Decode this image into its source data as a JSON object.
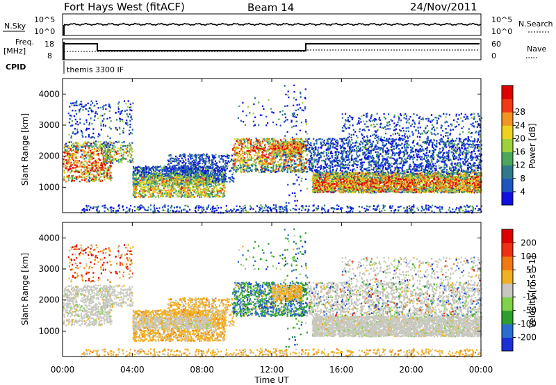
{
  "header": {
    "station": "Fort Hays West (fitACF)",
    "beam": "Beam 14",
    "date": "24/Nov/2011"
  },
  "strips": {
    "nsky_label": "N.Sky",
    "nsky_top": "10^5",
    "nsky_bottom": "10^0",
    "nsearch_label": "N.Search",
    "nsearch_top": "10^5",
    "nsearch_bottom": "10^0",
    "freq_label": "Freq.",
    "freq_unit": "[MHz]",
    "freq_top": "18",
    "freq_bottom": "8",
    "nave_label": "Nave",
    "nave_top": "60",
    "nave_bottom": "0",
    "cpid_label": "CPID",
    "cpid_value": "themis 3300 IF"
  },
  "chart_data": [
    {
      "type": "heatmap",
      "quantity": "Power",
      "ylabel": "Slant Range [km]",
      "ylim": [
        180,
        4500
      ],
      "yticks": [
        1000,
        2000,
        3000,
        4000
      ],
      "xlim": [
        "00:00",
        "24:00"
      ],
      "colorbar": {
        "label": "Power [dB]",
        "ticks": [
          "4",
          "8",
          "12",
          "16",
          "20",
          "24",
          "28"
        ],
        "colors": [
          "#1010e0",
          "#1d56c0",
          "#2f7a8c",
          "#4aa85a",
          "#9ed23c",
          "#f0d21e",
          "#f39420",
          "#f23a14",
          "#e00000"
        ]
      }
    },
    {
      "type": "heatmap",
      "quantity": "Velocity",
      "ylabel": "Slant Range [km]",
      "xlabel": "Time UT",
      "ylim": [
        180,
        4500
      ],
      "yticks": [
        1000,
        2000,
        3000,
        4000
      ],
      "xlim": [
        "00:00",
        "24:00"
      ],
      "xticks": [
        "00:00",
        "04:00",
        "08:00",
        "12:00",
        "16:00",
        "20:00",
        "00:00"
      ],
      "colorbar": {
        "label": "Velocity [m s^-1]",
        "ticks": [
          "200",
          "100",
          "50",
          "15",
          "-15",
          "-50",
          "-100",
          "-200"
        ],
        "colors": [
          "#1a2fd8",
          "#2a6ed0",
          "#2ca02c",
          "#7fd24a",
          "#c8c8c0",
          "#f2b020",
          "#f07a10",
          "#f03010",
          "#e00000"
        ]
      }
    }
  ]
}
